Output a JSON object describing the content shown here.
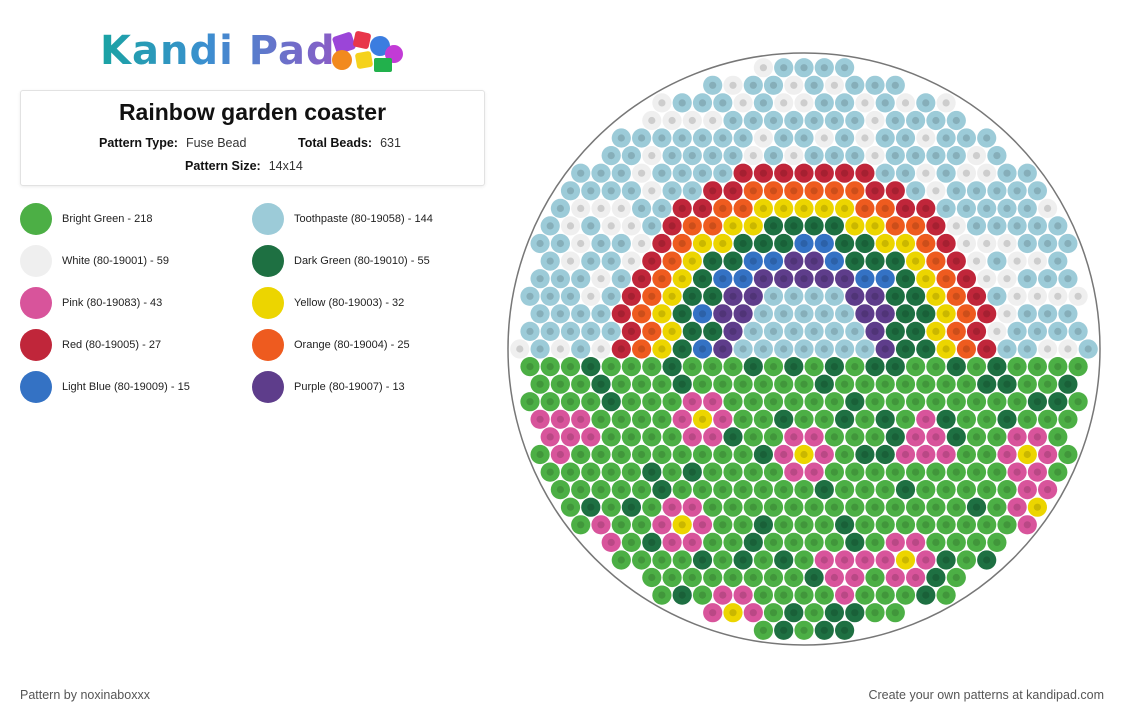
{
  "logo": {
    "text": "Kandi Pad",
    "icon": "beads-icon"
  },
  "pattern": {
    "title": "Rainbow garden coaster",
    "type_label": "Pattern Type:",
    "type_value": "Fuse Bead",
    "total_label": "Total Beads:",
    "total_value": "631",
    "size_label": "Pattern Size:",
    "size_value": "14x14"
  },
  "colors": [
    {
      "label": "Bright Green - 218",
      "hex": "#4caf45"
    },
    {
      "label": "Toothpaste (80-19058) - 144",
      "hex": "#9ccbd8"
    },
    {
      "label": "White (80-19001) - 59",
      "hex": "#efefef"
    },
    {
      "label": "Dark Green (80-19010) - 55",
      "hex": "#1e7042"
    },
    {
      "label": "Pink (80-19083) - 43",
      "hex": "#d8549b"
    },
    {
      "label": "Yellow (80-19003) - 32",
      "hex": "#ecd500"
    },
    {
      "label": "Red (80-19005) - 27",
      "hex": "#c0263a"
    },
    {
      "label": "Orange (80-19004) - 25",
      "hex": "#ee5b1f"
    },
    {
      "label": "Light Blue (80-19009) - 15",
      "hex": "#3472c4"
    },
    {
      "label": "Purple (80-19007) - 13",
      "hex": "#5e3d8b"
    }
  ],
  "footer": {
    "credit": "Pattern by noxinaboxxx",
    "promo": "Create your own patterns at kandipad.com"
  }
}
